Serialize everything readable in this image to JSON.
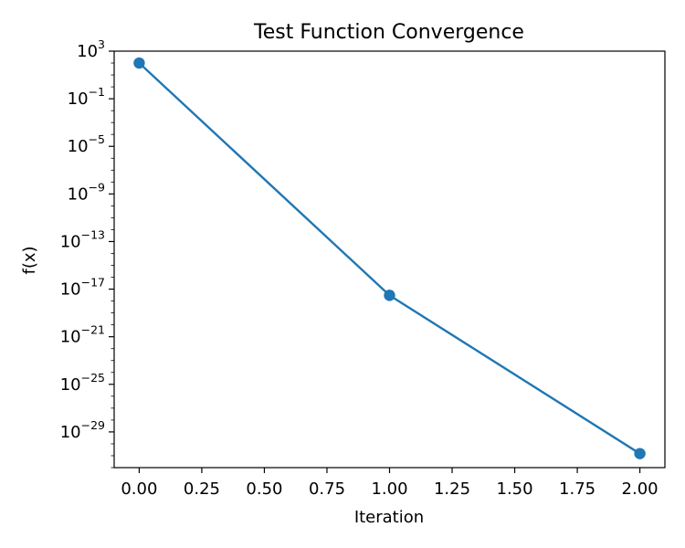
{
  "chart_data": {
    "type": "line",
    "title": "Test Function Convergence",
    "xlabel": "Iteration",
    "ylabel": "f(x)",
    "yscale": "log",
    "grid": false,
    "x": [
      0,
      1,
      2
    ],
    "series": [
      {
        "values": [
          100,
          3e-18,
          1.5e-31
        ],
        "color": "#1f77b4",
        "marker": "circle"
      }
    ],
    "xlim": [
      -0.1,
      2.1
    ],
    "ylim": [
      1e-32,
      1000
    ],
    "xticks": [
      0.0,
      0.25,
      0.5,
      0.75,
      1.0,
      1.25,
      1.5,
      1.75,
      2.0
    ],
    "xtick_labels": [
      "0.00",
      "0.25",
      "0.50",
      "0.75",
      "1.00",
      "1.25",
      "1.50",
      "1.75",
      "2.00"
    ],
    "yticks": [
      {
        "base": "10",
        "exp": "3",
        "value": 1000.0
      },
      {
        "base": "10",
        "exp": "−1",
        "value": 0.1
      },
      {
        "base": "10",
        "exp": "−5",
        "value": 1e-05
      },
      {
        "base": "10",
        "exp": "−9",
        "value": 1e-09
      },
      {
        "base": "10",
        "exp": "−13",
        "value": 1e-13
      },
      {
        "base": "10",
        "exp": "−17",
        "value": 1e-17
      },
      {
        "base": "10",
        "exp": "−21",
        "value": 1e-21
      },
      {
        "base": "10",
        "exp": "−25",
        "value": 1e-25
      },
      {
        "base": "10",
        "exp": "−29",
        "value": 1e-29
      }
    ]
  }
}
